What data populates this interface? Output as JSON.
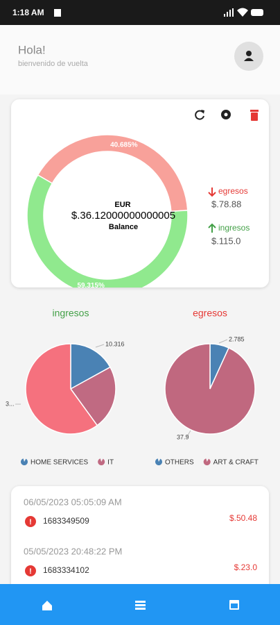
{
  "status_bar": {
    "time": "1:18 AM"
  },
  "header": {
    "greeting": "Hola!",
    "subtitle": "bienvenido de vuelta"
  },
  "balance_card": {
    "chart_data": {
      "type": "donut",
      "values": [
        40.685,
        59.315
      ],
      "value_labels": [
        "40.685%",
        "59.315%"
      ],
      "colors": [
        "#f8a19a",
        "#90e98e"
      ]
    },
    "currency": "EUR",
    "balance": "$.36.12000000000005",
    "balance_label": "Balance",
    "summary": [
      {
        "name": "egresos",
        "amount": "$.78.88",
        "color": "#e53935"
      },
      {
        "name": "ingresos",
        "amount": "$.115.0",
        "color": "#43a047"
      }
    ]
  },
  "pies": [
    {
      "type": "pie",
      "title": "ingresos",
      "title_color": "#43a047",
      "categories": [
        "HOME SERVICES",
        "IT",
        null
      ],
      "values": [
        17,
        23,
        60
      ],
      "colors": [
        "#4a82b4",
        "#c06a82",
        "#f5717e"
      ],
      "annotations": [
        "10.316",
        "3..."
      ]
    },
    {
      "type": "pie",
      "title": "egresos",
      "title_color": "#e53935",
      "categories": [
        "OTHERS",
        "ART & CRAFT"
      ],
      "values": [
        2.785,
        37.9
      ],
      "colors": [
        "#4a82b4",
        "#c0687f"
      ]
    }
  ],
  "transactions": [
    {
      "date": "06/05/2023 05:05:09 AM",
      "id": "1683349509",
      "amount": "$.50.48"
    },
    {
      "date": "05/05/2023 20:48:22 PM",
      "id": "1683334102",
      "amount": "$.23.0"
    }
  ]
}
